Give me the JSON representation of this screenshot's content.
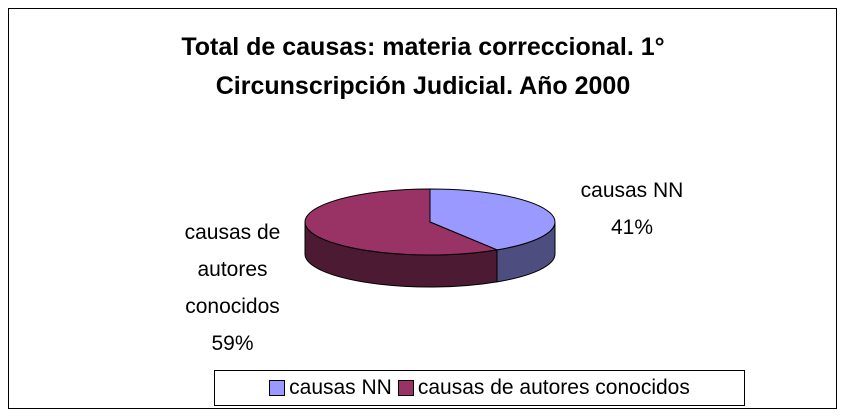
{
  "chart_data": {
    "type": "pie",
    "title": "Total de causas: materia correccional. 1° Circunscripción Judicial. Año 2000",
    "categories": [
      "causas NN",
      "causas de autores conocidos"
    ],
    "values": [
      41,
      59
    ],
    "value_labels": [
      "41%",
      "59%"
    ],
    "colors": [
      "#9999ff",
      "#993366"
    ],
    "legend": "bottom"
  }
}
